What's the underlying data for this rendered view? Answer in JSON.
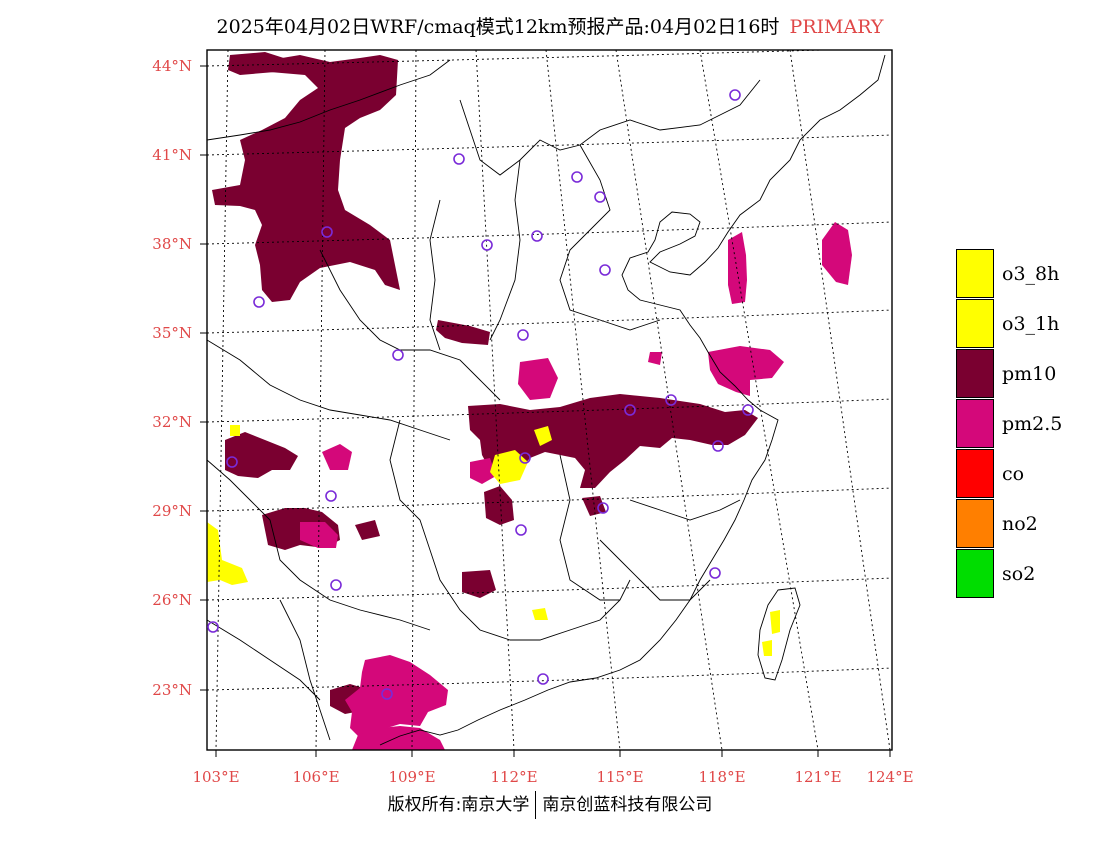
{
  "title": {
    "main": "2025年04月02日WRF/cmaq模式12km预报产品:04月02日16时",
    "type": "PRIMARY"
  },
  "map": {
    "lat_labels": [
      "44°N",
      "41°N",
      "38°N",
      "35°N",
      "32°N",
      "29°N",
      "26°N",
      "23°N"
    ],
    "lon_labels": [
      "103°E",
      "106°E",
      "109°E",
      "112°E",
      "115°E",
      "118°E",
      "121°E",
      "124°E"
    ],
    "colors": {
      "o3_8h": "#ffff00",
      "o3_1h": "#ffff00",
      "pm10": "#7a0030",
      "pm2.5": "#d4087a",
      "co": "#ff0000",
      "no2": "#ff7f00",
      "so2": "#00dd00",
      "station": "#7a2bd8",
      "label": "#e04848"
    }
  },
  "legend": [
    {
      "label": "o3_8h",
      "color": "#ffff00"
    },
    {
      "label": "o3_1h",
      "color": "#ffff00"
    },
    {
      "label": "pm10",
      "color": "#7a0030"
    },
    {
      "label": "pm2.5",
      "color": "#d4087a"
    },
    {
      "label": "co",
      "color": "#ff0000"
    },
    {
      "label": "no2",
      "color": "#ff7f00"
    },
    {
      "label": "so2",
      "color": "#00dd00"
    }
  ],
  "footer": {
    "left": "版权所有:南京大学",
    "right": "南京创蓝科技有限公司"
  }
}
